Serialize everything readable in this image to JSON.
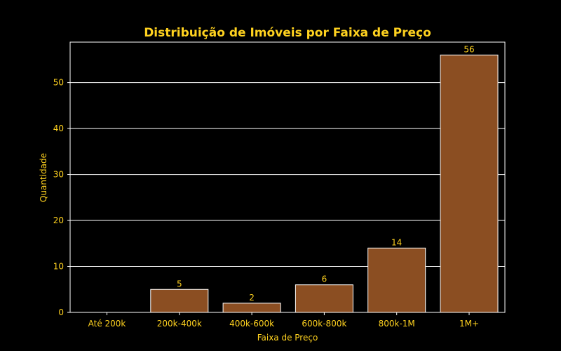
{
  "chart_data": {
    "type": "bar",
    "title": "Distribuição de Imóveis por Faixa de Preço",
    "xlabel": "Faixa de Preço",
    "ylabel": "Quantidade",
    "categories": [
      "Até 200k",
      "200k-400k",
      "400k-600k",
      "600k-800k",
      "800k-1M",
      "1M+"
    ],
    "values": [
      0,
      5,
      2,
      6,
      14,
      56
    ],
    "data_labels": [
      "",
      "5",
      "2",
      "6",
      "14",
      "56"
    ],
    "ylim": [
      0,
      58.8
    ],
    "yticks": [
      0,
      10,
      20,
      30,
      40,
      50
    ],
    "grid": "horizontal",
    "colors": {
      "background": "#000000",
      "bar_fill": "#8B4E22",
      "bar_edge": "#ffffff",
      "text": "#FFD21F",
      "axes": "#ffffff",
      "grid": "#ffffff"
    }
  }
}
